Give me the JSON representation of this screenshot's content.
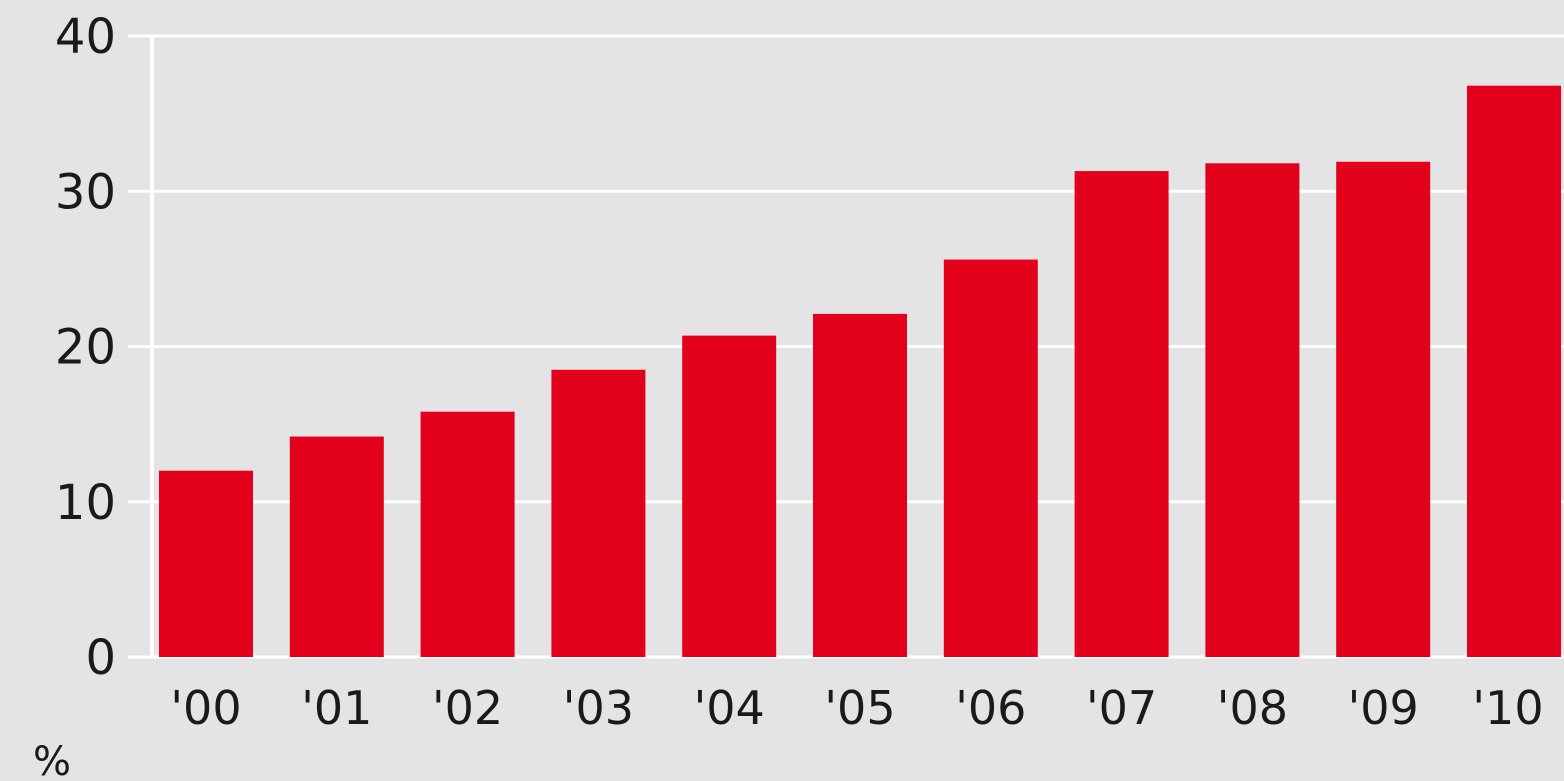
{
  "chart_data": {
    "type": "bar",
    "categories": [
      "'00",
      "'01",
      "'02",
      "'03",
      "'04",
      "'05",
      "'06",
      "'07",
      "'08",
      "'09",
      "'10"
    ],
    "values": [
      12,
      14.2,
      15.8,
      18.5,
      20.7,
      22.1,
      25.6,
      31.3,
      31.8,
      31.9,
      36.8
    ],
    "title": "",
    "xlabel": "",
    "ylabel": "",
    "unit": "%",
    "ylim": [
      0,
      40
    ],
    "yticks": [
      0,
      10,
      20,
      30,
      40
    ],
    "grid": true,
    "legend": "none",
    "colors": {
      "bar": "#e3001b",
      "background": "#e4e4e6",
      "grid": "#ffffff",
      "text": "#1a1a1a"
    }
  }
}
